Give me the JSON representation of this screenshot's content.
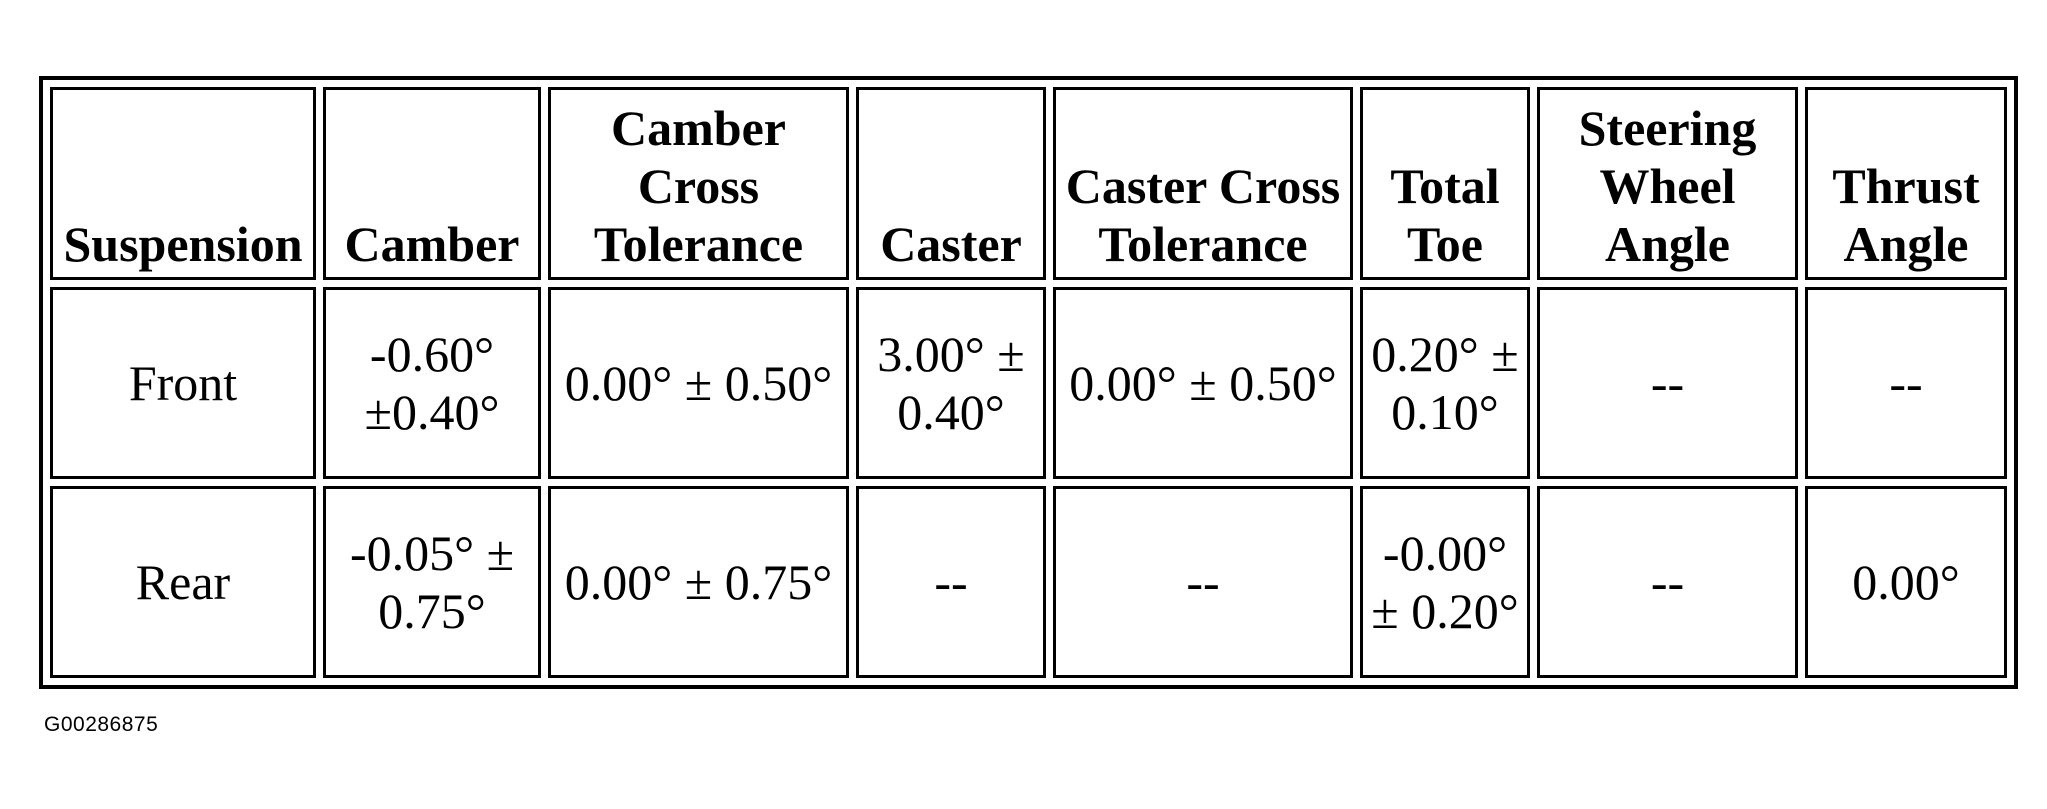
{
  "table": {
    "headers": [
      "Suspension",
      "Camber",
      "Camber Cross Tolerance",
      "Caster",
      "Caster Cross Tolerance",
      "Total Toe",
      "Steering Wheel Angle",
      "Thrust Angle"
    ],
    "rows": [
      [
        "Front",
        "-0.60° ±0.40°",
        "0.00° ± 0.50°",
        "3.00° ± 0.40°",
        "0.00° ± 0.50°",
        "0.20° ± 0.10°",
        "--",
        "--"
      ],
      [
        "Rear",
        "-0.05° ± 0.75°",
        "0.00° ± 0.75°",
        "--",
        "--",
        "-0.00° ± 0.20°",
        "--",
        "0.00°"
      ]
    ]
  },
  "figure_id": "G00286875"
}
